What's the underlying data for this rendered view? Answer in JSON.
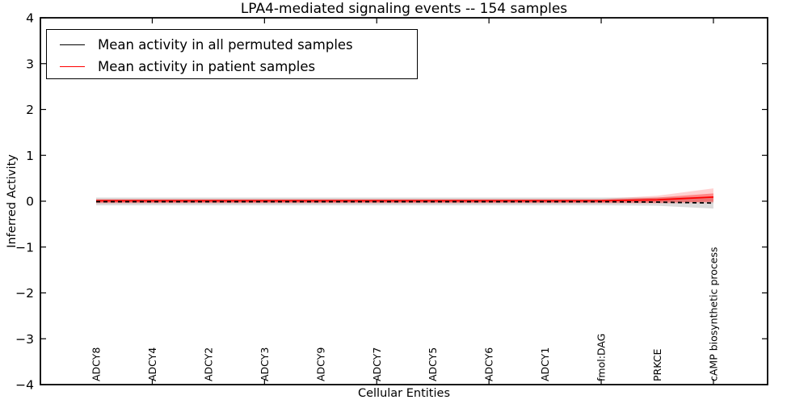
{
  "title": "LPA4-mediated signaling events -- 154 samples",
  "axes": {
    "xlabel": "Cellular Entities",
    "ylabel": "Inferred Activity"
  },
  "legend": {
    "items": [
      {
        "label": "Mean activity in all permuted samples",
        "color": "#000000"
      },
      {
        "label": "Mean activity in patient samples",
        "color": "#ff0000"
      }
    ]
  },
  "chart_data": {
    "type": "line",
    "title": "LPA4-mediated signaling events -- 154 samples",
    "xlabel": "Cellular Entities",
    "ylabel": "Inferred Activity",
    "ylim": [
      -4,
      4
    ],
    "yticks": [
      -4,
      -3,
      -2,
      -1,
      0,
      1,
      2,
      3,
      4
    ],
    "ytick_labels": [
      "−4",
      "−3",
      "−2",
      "−1",
      "0",
      "1",
      "2",
      "3",
      "4"
    ],
    "grid": false,
    "legend_position": "upper left",
    "categories": [
      "ADCY8",
      "ADCY4",
      "ADCY2",
      "ADCY3",
      "ADCY9",
      "ADCY7",
      "ADCY5",
      "ADCY6",
      "ADCY1",
      "fmol:DAG",
      "PRKCE",
      "cAMP biosynthetic process"
    ],
    "xticks_shown_at_category_indices": [
      1,
      3,
      5,
      7,
      9,
      11
    ],
    "series": [
      {
        "name": "Mean activity in all permuted samples",
        "color": "#000000",
        "dash": "5,4",
        "values": [
          -0.01,
          -0.01,
          -0.01,
          -0.01,
          -0.01,
          -0.01,
          -0.01,
          -0.01,
          -0.01,
          -0.01,
          -0.02,
          -0.04
        ]
      },
      {
        "name": "Mean activity in patient samples",
        "color": "#ff0000",
        "dash": "",
        "values": [
          0.01,
          0.01,
          0.01,
          0.01,
          0.01,
          0.01,
          0.01,
          0.01,
          0.01,
          0.01,
          0.03,
          0.09
        ]
      }
    ],
    "bands": [
      {
        "name": "permuted-samples-range",
        "color": "rgba(0,0,0,0.14)",
        "upper": [
          0.08,
          0.08,
          0.08,
          0.08,
          0.08,
          0.08,
          0.08,
          0.08,
          0.08,
          0.08,
          0.08,
          0.1
        ],
        "lower": [
          -0.09,
          -0.09,
          -0.09,
          -0.09,
          -0.09,
          -0.09,
          -0.09,
          -0.09,
          -0.09,
          -0.09,
          -0.1,
          -0.16
        ]
      },
      {
        "name": "patient-samples-range-outer",
        "color": "rgba(255,0,0,0.18)",
        "upper": [
          0.05,
          0.05,
          0.05,
          0.05,
          0.05,
          0.05,
          0.05,
          0.05,
          0.05,
          0.05,
          0.12,
          0.28
        ],
        "lower": [
          -0.05,
          -0.05,
          -0.05,
          -0.05,
          -0.05,
          -0.05,
          -0.05,
          -0.05,
          -0.05,
          -0.05,
          -0.05,
          -0.04
        ]
      },
      {
        "name": "patient-samples-range-inner",
        "color": "rgba(255,0,0,0.35)",
        "upper": [
          0.03,
          0.03,
          0.03,
          0.03,
          0.03,
          0.03,
          0.03,
          0.03,
          0.03,
          0.03,
          0.08,
          0.17
        ],
        "lower": [
          -0.03,
          -0.03,
          -0.03,
          -0.03,
          -0.03,
          -0.03,
          -0.03,
          -0.03,
          -0.03,
          -0.03,
          -0.03,
          -0.01
        ]
      }
    ]
  }
}
